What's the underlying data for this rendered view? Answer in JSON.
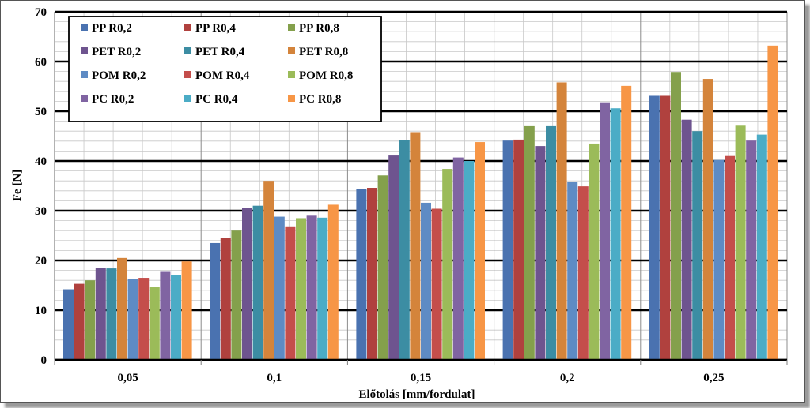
{
  "chart_data": {
    "type": "bar",
    "title": "",
    "xlabel": "Előtolás [mm/fordulat]",
    "ylabel": "Fe [N]",
    "ylim": [
      0,
      70
    ],
    "yticks": [
      0,
      10,
      20,
      30,
      40,
      50,
      60,
      70
    ],
    "grid": true,
    "legend_position": "top-left",
    "categories": [
      "0,05",
      "0,1",
      "0,15",
      "0,2",
      "0,25"
    ],
    "series": [
      {
        "name": "PP R0,2",
        "color": "#4a72b0",
        "values": [
          14.2,
          23.5,
          34.3,
          44.1,
          53.1
        ]
      },
      {
        "name": "PP R0,4",
        "color": "#b0413e",
        "values": [
          15.3,
          24.5,
          34.6,
          44.3,
          53.1
        ]
      },
      {
        "name": "PP R0,8",
        "color": "#84a04c",
        "values": [
          16.0,
          26.0,
          37.1,
          47.0,
          57.9
        ]
      },
      {
        "name": "PET R0,2",
        "color": "#6e548f",
        "values": [
          18.5,
          30.5,
          41.1,
          43.0,
          48.3
        ]
      },
      {
        "name": "PET R0,4",
        "color": "#3c8da3",
        "values": [
          18.4,
          31.0,
          44.2,
          47.0,
          46.0
        ]
      },
      {
        "name": "PET R0,8",
        "color": "#d4843b",
        "values": [
          20.5,
          36.0,
          45.8,
          55.8,
          56.5
        ]
      },
      {
        "name": "POM R0,2",
        "color": "#5e8bc4",
        "values": [
          16.2,
          28.8,
          31.6,
          35.8,
          40.2
        ]
      },
      {
        "name": "POM R0,4",
        "color": "#c44e4b",
        "values": [
          16.5,
          26.7,
          30.4,
          34.9,
          41.0
        ]
      },
      {
        "name": "POM R0,8",
        "color": "#9bbb59",
        "values": [
          14.6,
          28.5,
          38.4,
          43.5,
          47.1
        ]
      },
      {
        "name": "PC R0,2",
        "color": "#8064a2",
        "values": [
          17.7,
          29.0,
          40.7,
          51.8,
          44.1
        ]
      },
      {
        "name": "PC R0,4",
        "color": "#4bacc6",
        "values": [
          17.0,
          28.6,
          40.0,
          50.6,
          45.3
        ]
      },
      {
        "name": "PC R0,8",
        "color": "#f79646",
        "values": [
          19.8,
          31.2,
          43.8,
          55.1,
          63.2
        ]
      }
    ]
  }
}
